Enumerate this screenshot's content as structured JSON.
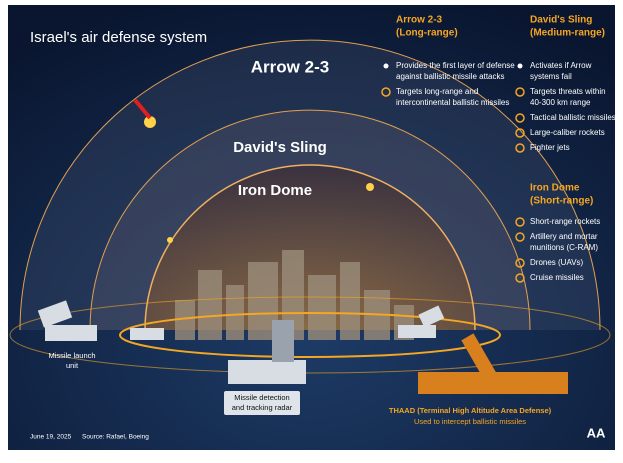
{
  "title": "Israel's air defense system",
  "layers": [
    {
      "label": "Arrow 2-3",
      "heading": [
        "Arrow 2-3",
        "(Long-range)"
      ],
      "items": [
        {
          "icon": "dot",
          "lines": [
            "Provides the first layer of defense",
            "against ballistic missile attacks"
          ]
        },
        {
          "icon": "target",
          "lines": [
            "Targets long-range and",
            "intercontinental ballistic missiles"
          ]
        }
      ]
    },
    {
      "label": "David's Sling",
      "heading": [
        "David's Sling",
        "(Medium-range)"
      ],
      "items": [
        {
          "icon": "dot",
          "lines": [
            "Activates if Arrow",
            "systems fail"
          ]
        },
        {
          "icon": "target",
          "lines": [
            "Targets threats within",
            "40-300 km range"
          ]
        },
        {
          "icon": "target",
          "lines": [
            "Tactical ballistic missiles"
          ]
        },
        {
          "icon": "target",
          "lines": [
            "Large-caliber rockets"
          ]
        },
        {
          "icon": "target",
          "lines": [
            "Fighter jets"
          ]
        }
      ]
    },
    {
      "label": "Iron Dome",
      "heading": [
        "Iron Dome",
        "(Short-range)"
      ],
      "items": [
        {
          "icon": "target",
          "lines": [
            "Short-range rockets"
          ]
        },
        {
          "icon": "target",
          "lines": [
            "Artillery and mortar",
            "munitions (C-RAM)"
          ]
        },
        {
          "icon": "target",
          "lines": [
            "Drones (UAVs)"
          ]
        },
        {
          "icon": "target",
          "lines": [
            "Cruise missiles"
          ]
        }
      ]
    }
  ],
  "labels": {
    "launcher": [
      "Missile launch",
      "unit"
    ],
    "radar": [
      "Missile detection",
      "and tracking radar"
    ],
    "thaad": "THAAD (Terminal High Altitude Area Defense)",
    "thaad_note": "Used to intercept ballistic missiles"
  },
  "footer": {
    "date": "June 19, 2025",
    "source": "Source: Rafael, Boeing",
    "logo": "AA"
  }
}
